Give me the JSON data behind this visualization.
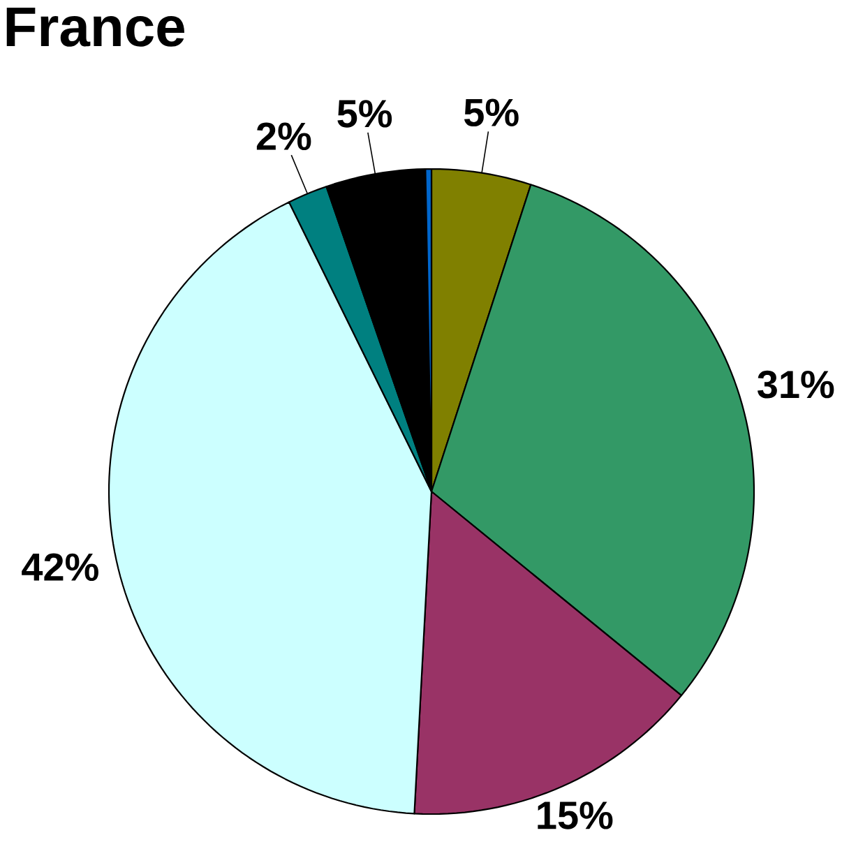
{
  "chart_data": {
    "type": "pie",
    "title": "France",
    "categories": [
      null,
      null,
      null,
      null,
      null,
      null,
      null
    ],
    "values": [
      5,
      31,
      15,
      42,
      2,
      5,
      0.3
    ],
    "colors": [
      "#808000",
      "#339966",
      "#993366",
      "#ccffff",
      "#008080",
      "#000000",
      "#0066cc"
    ],
    "value_labels": [
      "5%",
      "31%",
      "15%",
      "42%",
      "2%",
      "5%",
      null
    ]
  }
}
